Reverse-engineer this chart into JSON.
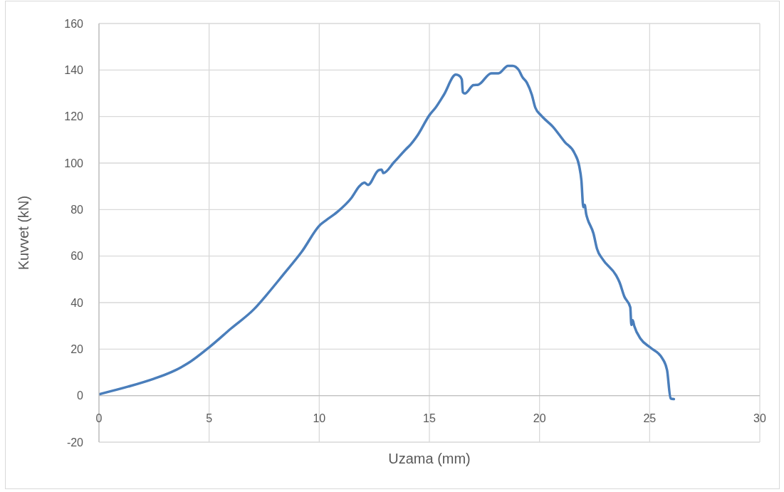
{
  "chart_data": {
    "type": "line",
    "xlabel": "Uzama (mm)",
    "ylabel": "Kuvvet (kN)",
    "x": [
      0,
      1.33,
      2.5,
      3.3,
      4.02,
      4.99,
      6.0,
      7.04,
      7.6,
      8.33,
      9.2,
      10.05,
      10.32,
      10.81,
      11.46,
      11.83,
      12.05,
      12.21,
      12.69,
      12.83,
      12.91,
      13.39,
      13.93,
      14.15,
      14.47,
      15.01,
      15.28,
      15.66,
      16.2,
      16.36,
      16.47,
      16.52,
      16.61,
      17.0,
      17.22,
      17.81,
      18.14,
      18.57,
      18.78,
      19.05,
      19.22,
      19.43,
      19.65,
      19.81,
      20.08,
      20.61,
      21.15,
      21.58,
      21.8,
      21.9,
      21.99,
      22.05,
      22.12,
      22.18,
      22.45,
      22.61,
      22.88,
      23.47,
      23.63,
      23.85,
      24.12,
      24.17,
      24.23,
      24.3,
      24.6,
      25.03,
      25.57,
      25.79,
      25.95,
      26.1
    ],
    "series": [
      {
        "color": "#4a7ebb",
        "values": [
          0.6,
          3.9,
          7.3,
          10.2,
          13.8,
          20.7,
          28.9,
          37.2,
          43.2,
          51.6,
          61.8,
          73.5,
          75.5,
          78.9,
          85,
          90.1,
          91.6,
          90.6,
          96.9,
          97.2,
          95.7,
          100.3,
          105.9,
          108,
          112,
          120.7,
          123.8,
          129.4,
          138,
          137.5,
          136,
          130.4,
          129.9,
          133.5,
          133.7,
          138.6,
          138.6,
          141.8,
          141.8,
          140.1,
          137,
          134.5,
          129.4,
          123.8,
          120.4,
          115.6,
          109,
          104.4,
          98.8,
          92.7,
          81,
          82,
          78,
          76,
          69.7,
          63.1,
          58.5,
          51.8,
          48.8,
          42.6,
          38,
          30.4,
          32.4,
          30,
          24.3,
          20.7,
          16.1,
          11,
          -1.2,
          -1.5
        ]
      }
    ],
    "xlim": [
      0,
      30
    ],
    "xticks": [
      0,
      5,
      10,
      15,
      20,
      25,
      30
    ],
    "ylim": [
      -20,
      160
    ],
    "yticks": [
      -20,
      0,
      20,
      40,
      60,
      80,
      100,
      120,
      140,
      160
    ],
    "grid": true,
    "marker": "none",
    "line_style": "solid"
  }
}
